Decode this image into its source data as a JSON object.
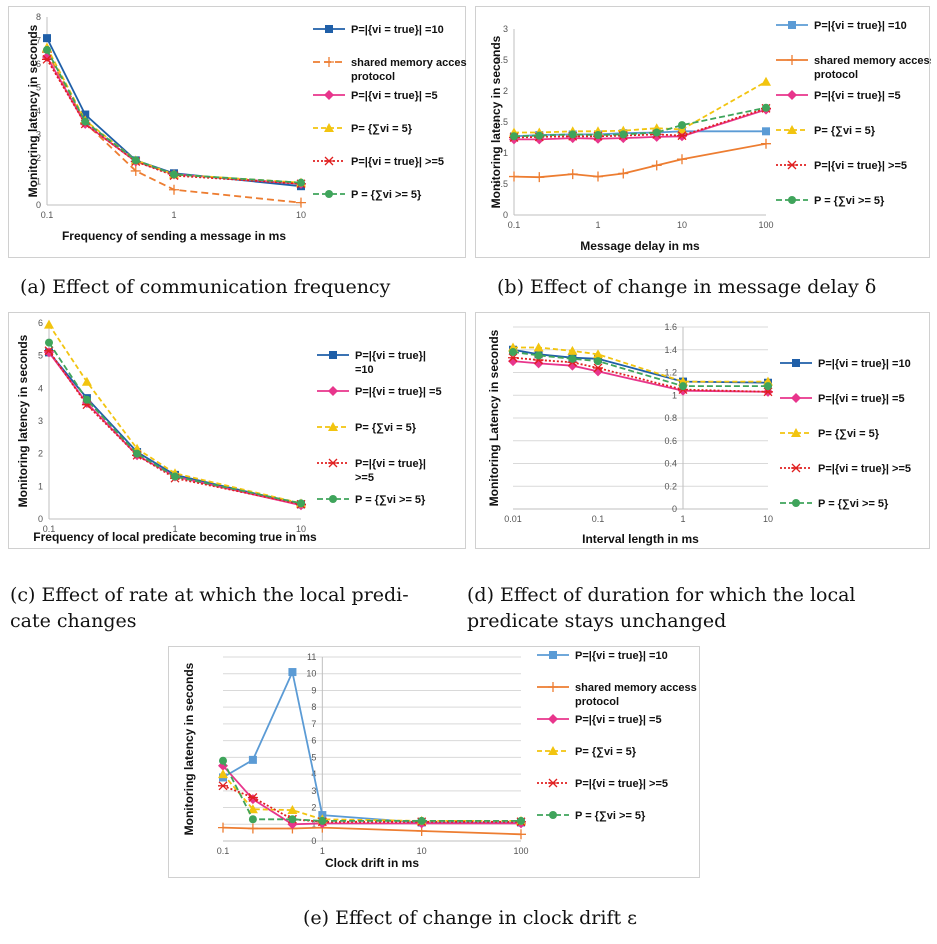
{
  "captions": {
    "a": "(a) Effect of communication frequency",
    "b": "(b) Effect of change in message delay δ",
    "c1": "(c) Effect of rate at which the local predi-",
    "c2": "cate changes",
    "d1": "(d) Effect of duration for which the local",
    "d2": "predicate stays unchanged",
    "e": "(e) Effect of change in clock drift ε"
  },
  "chart_data": [
    {
      "id": "a",
      "type": "line",
      "log_x": true,
      "xlabel": "Frequency of sending a message in ms",
      "ylabel": "Monitoring latency in seconds",
      "xlim": [
        0.1,
        10
      ],
      "ylim": [
        0,
        8
      ],
      "xticks": [
        "0.1",
        "1",
        "10"
      ],
      "yticks": [
        "0",
        "1",
        "2",
        "3",
        "4",
        "5",
        "6",
        "7",
        "8"
      ],
      "x": [
        0.1,
        0.2,
        0.5,
        1,
        10
      ],
      "legend": "right",
      "grid": false,
      "series": [
        {
          "name": "P=|{vi = true}| =10",
          "color": "#1f5fa8",
          "dash": "",
          "marker": "square",
          "values": [
            7.1,
            3.85,
            1.9,
            1.35,
            0.8
          ]
        },
        {
          "name": "shared memory access protocol",
          "color": "#ed7d31",
          "dash": "7,4",
          "marker": "plus",
          "values": [
            6.5,
            3.5,
            1.45,
            0.65,
            0.1
          ]
        },
        {
          "name": "P=|{vi = true}| =5",
          "color": "#e8358c",
          "dash": "",
          "marker": "diamond",
          "values": [
            6.3,
            3.45,
            1.85,
            1.3,
            0.9
          ]
        },
        {
          "name": "P= {∑vi = 5}",
          "color": "#f2c40f",
          "dash": "5,3",
          "marker": "triangle",
          "values": [
            6.7,
            3.6,
            1.9,
            1.3,
            0.95
          ]
        },
        {
          "name": "P=|{vi = true}| >=5",
          "color": "#e02020",
          "dash": "2,2",
          "marker": "star",
          "values": [
            6.2,
            3.45,
            1.85,
            1.25,
            0.9
          ]
        },
        {
          "name": "P = {∑vi >= 5}",
          "color": "#3fa45b",
          "dash": "6,3",
          "marker": "circle",
          "values": [
            6.6,
            3.55,
            1.9,
            1.3,
            0.95
          ]
        }
      ]
    },
    {
      "id": "b",
      "type": "line",
      "log_x": true,
      "xlabel": "Message delay in ms",
      "ylabel": "Monitoring latency in seconds",
      "xlim": [
        0.1,
        100
      ],
      "ylim": [
        0,
        3
      ],
      "xticks": [
        "0.1",
        "1",
        "10",
        "100"
      ],
      "yticks": [
        "0",
        "0.5",
        "1",
        "1.5",
        "2",
        "2.5",
        "3"
      ],
      "x": [
        0.1,
        0.2,
        0.5,
        1,
        2,
        5,
        10,
        100
      ],
      "legend": "right",
      "grid": false,
      "series": [
        {
          "name": "P=|{vi = true}| =10",
          "color": "#5b9bd5",
          "dash": "",
          "marker": "square",
          "values": [
            1.27,
            1.29,
            1.3,
            1.3,
            1.32,
            1.33,
            1.35,
            1.35
          ]
        },
        {
          "name": "shared memory access protocol",
          "color": "#ed7d31",
          "dash": "",
          "marker": "plus",
          "values": [
            0.62,
            0.61,
            0.66,
            0.62,
            0.67,
            0.8,
            0.9,
            1.15
          ]
        },
        {
          "name": "P=|{vi = true}| =5",
          "color": "#e8358c",
          "dash": "",
          "marker": "diamond",
          "values": [
            1.22,
            1.22,
            1.24,
            1.23,
            1.24,
            1.26,
            1.27,
            1.7
          ]
        },
        {
          "name": "P= {∑vi = 5}",
          "color": "#f2c40f",
          "dash": "5,3",
          "marker": "triangle",
          "values": [
            1.33,
            1.33,
            1.35,
            1.35,
            1.36,
            1.4,
            1.38,
            2.15
          ]
        },
        {
          "name": "P=|{vi = true}| >=5",
          "color": "#e02020",
          "dash": "2,2",
          "marker": "star",
          "values": [
            1.25,
            1.26,
            1.27,
            1.27,
            1.28,
            1.3,
            1.28,
            1.72
          ]
        },
        {
          "name": "P = {∑vi >= 5}",
          "color": "#3fa45b",
          "dash": "6,3",
          "marker": "circle",
          "values": [
            1.27,
            1.28,
            1.3,
            1.29,
            1.3,
            1.33,
            1.45,
            1.73
          ]
        }
      ]
    },
    {
      "id": "c",
      "type": "line",
      "log_x": true,
      "xlabel": "Frequency of local predicate becoming true in ms",
      "ylabel": "Monitoring latency in seconds",
      "xlim": [
        0.1,
        10
      ],
      "ylim": [
        0,
        6
      ],
      "xticks": [
        "0.1",
        "1",
        "10"
      ],
      "yticks": [
        "0",
        "1",
        "2",
        "3",
        "4",
        "5",
        "6"
      ],
      "x": [
        0.1,
        0.2,
        0.5,
        1,
        10
      ],
      "legend": "right",
      "grid": false,
      "series": [
        {
          "name": "P=|{vi = true}| =10",
          "color": "#1f5fa8",
          "dash": "",
          "marker": "square",
          "values": [
            5.1,
            3.7,
            2.05,
            1.35,
            0.45
          ]
        },
        {
          "name": "P=|{vi = true}| =5",
          "color": "#e8358c",
          "dash": "",
          "marker": "diamond",
          "values": [
            5.1,
            3.55,
            1.95,
            1.3,
            0.42
          ]
        },
        {
          "name": "P= {∑vi = 5}",
          "color": "#f2c40f",
          "dash": "5,3",
          "marker": "triangle",
          "values": [
            5.95,
            4.2,
            2.15,
            1.4,
            0.48
          ]
        },
        {
          "name": "P=|{vi = true}| >=5",
          "color": "#e02020",
          "dash": "2,2",
          "marker": "star",
          "values": [
            5.15,
            3.5,
            1.95,
            1.25,
            0.45
          ]
        },
        {
          "name": "P = {∑vi >= 5}",
          "color": "#3fa45b",
          "dash": "6,3",
          "marker": "circle",
          "values": [
            5.4,
            3.65,
            2.0,
            1.3,
            0.48
          ]
        }
      ]
    },
    {
      "id": "d",
      "type": "line",
      "log_x": true,
      "xlabel": "Interval length in ms",
      "ylabel": "Monitoring Latency in seconds",
      "xlim": [
        0.01,
        10
      ],
      "ylim": [
        0,
        1.6
      ],
      "xticks": [
        "0.01",
        "0.1",
        "1",
        "10"
      ],
      "yticks": [
        "0",
        "0.2",
        "0.4",
        "0.6",
        "0.8",
        "1",
        "1.2",
        "1.4",
        "1.6"
      ],
      "x": [
        0.01,
        0.02,
        0.05,
        0.1,
        1,
        10
      ],
      "legend": "right",
      "grid": true,
      "series": [
        {
          "name": "P=|{vi = true}| =10",
          "color": "#1f5fa8",
          "dash": "",
          "marker": "square",
          "values": [
            1.4,
            1.36,
            1.33,
            1.32,
            1.12,
            1.11
          ]
        },
        {
          "name": "P=|{vi = true}| =5",
          "color": "#e8358c",
          "dash": "",
          "marker": "diamond",
          "values": [
            1.3,
            1.28,
            1.26,
            1.21,
            1.04,
            1.03
          ]
        },
        {
          "name": "P= {∑vi = 5}",
          "color": "#f2c40f",
          "dash": "5,3",
          "marker": "triangle",
          "values": [
            1.42,
            1.42,
            1.39,
            1.36,
            1.12,
            1.12
          ]
        },
        {
          "name": "P=|{vi = true}| >=5",
          "color": "#e02020",
          "dash": "2,2",
          "marker": "star",
          "values": [
            1.33,
            1.31,
            1.29,
            1.24,
            1.05,
            1.03
          ]
        },
        {
          "name": "P = {∑vi >= 5}",
          "color": "#3fa45b",
          "dash": "6,3",
          "marker": "circle",
          "values": [
            1.38,
            1.35,
            1.32,
            1.3,
            1.08,
            1.08
          ]
        }
      ]
    },
    {
      "id": "e",
      "type": "line",
      "log_x": true,
      "xlabel": "Clock drift in ms",
      "ylabel": "Monitoring latency in seconds",
      "xlim": [
        0.1,
        100
      ],
      "ylim": [
        0,
        11
      ],
      "xticks": [
        "0.1",
        "1",
        "10",
        "100"
      ],
      "yticks": [
        "0",
        "1",
        "2",
        "3",
        "4",
        "5",
        "6",
        "7",
        "8",
        "9",
        "10",
        "11"
      ],
      "x": [
        0.1,
        0.2,
        0.5,
        1,
        10,
        100
      ],
      "legend": "right",
      "grid": true,
      "series": [
        {
          "name": "P=|{vi = true}| =10",
          "color": "#5b9bd5",
          "dash": "",
          "marker": "square",
          "values": [
            3.8,
            4.85,
            10.1,
            1.55,
            1.1,
            1.1
          ]
        },
        {
          "name": "shared memory access protocol",
          "color": "#ed7d31",
          "dash": "",
          "marker": "plus",
          "values": [
            0.8,
            0.75,
            0.75,
            0.8,
            0.6,
            0.4
          ]
        },
        {
          "name": "P=|{vi = true}| =5",
          "color": "#e8358c",
          "dash": "",
          "marker": "diamond",
          "values": [
            4.5,
            2.5,
            1.0,
            1.05,
            1.05,
            1.05
          ]
        },
        {
          "name": "P= {∑vi = 5}",
          "color": "#f2c40f",
          "dash": "5,3",
          "marker": "triangle",
          "values": [
            4.0,
            1.9,
            1.85,
            1.3,
            1.2,
            1.2
          ]
        },
        {
          "name": "P=|{vi = true}| >=5",
          "color": "#e02020",
          "dash": "2,2",
          "marker": "star",
          "values": [
            3.3,
            2.6,
            1.3,
            1.15,
            1.15,
            1.15
          ]
        },
        {
          "name": "P = {∑vi >= 5}",
          "color": "#3fa45b",
          "dash": "6,3",
          "marker": "circle",
          "values": [
            4.8,
            1.3,
            1.3,
            1.2,
            1.2,
            1.2
          ]
        }
      ]
    }
  ]
}
